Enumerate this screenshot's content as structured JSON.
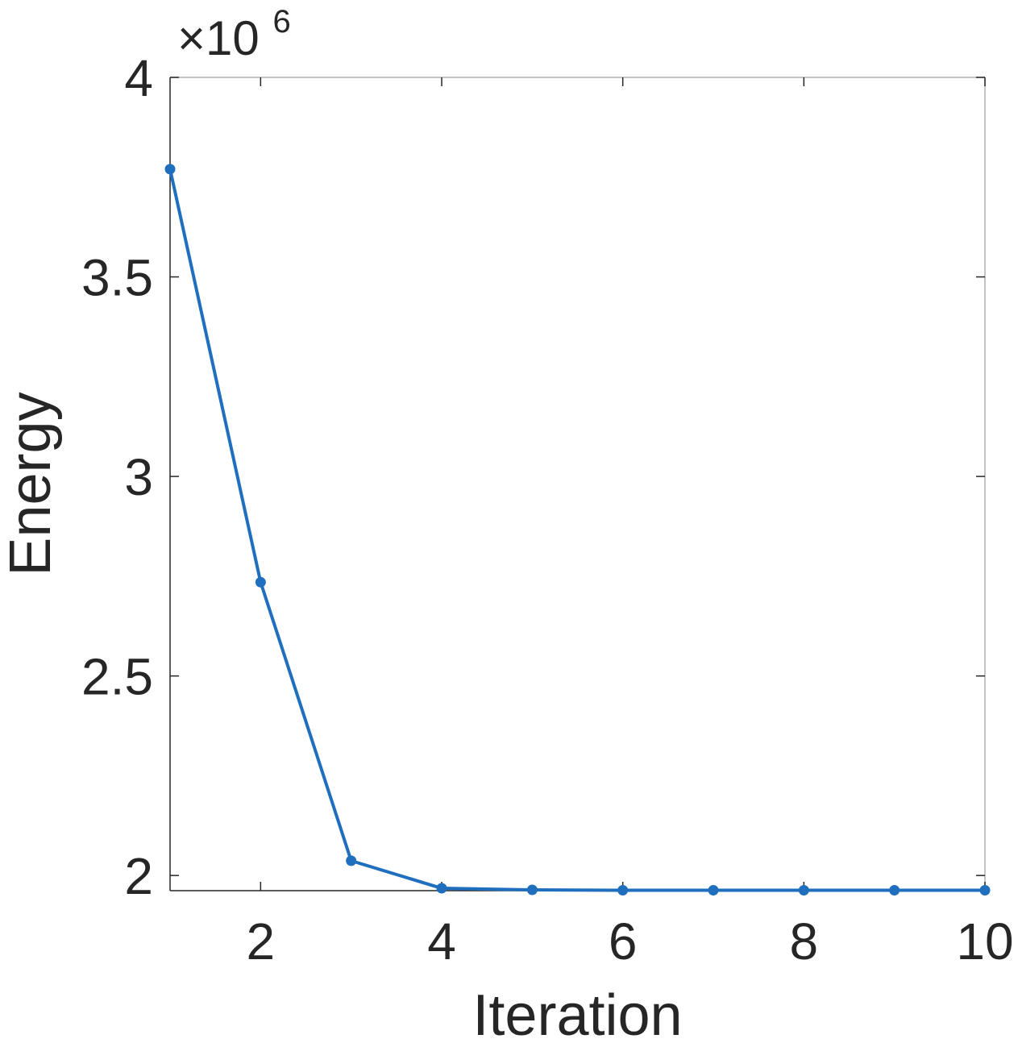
{
  "chart_data": {
    "type": "line",
    "title": "",
    "xlabel": "Iteration",
    "ylabel": "Energy",
    "exponent_label": "×10",
    "exponent_power": "6",
    "xlim": [
      1,
      10
    ],
    "ylim": [
      1.962,
      4
    ],
    "x_ticks": [
      2,
      4,
      6,
      8,
      10
    ],
    "x_tick_labels": [
      "2",
      "4",
      "6",
      "8",
      "10"
    ],
    "y_ticks": [
      2,
      2.5,
      3,
      3.5,
      4
    ],
    "y_tick_labels": [
      "2",
      "2.5",
      "3",
      "3.5",
      "4"
    ],
    "grid": false,
    "series": [
      {
        "x": [
          1,
          2,
          3,
          4,
          5,
          6,
          7,
          8,
          9,
          10
        ],
        "values": [
          3.77,
          2.735,
          2.037,
          1.968,
          1.964,
          1.963,
          1.963,
          1.963,
          1.963,
          1.963
        ]
      }
    ],
    "colors": {
      "line": "#1f6fbe",
      "axis": "#262626",
      "box": "#b0b0b0"
    }
  }
}
